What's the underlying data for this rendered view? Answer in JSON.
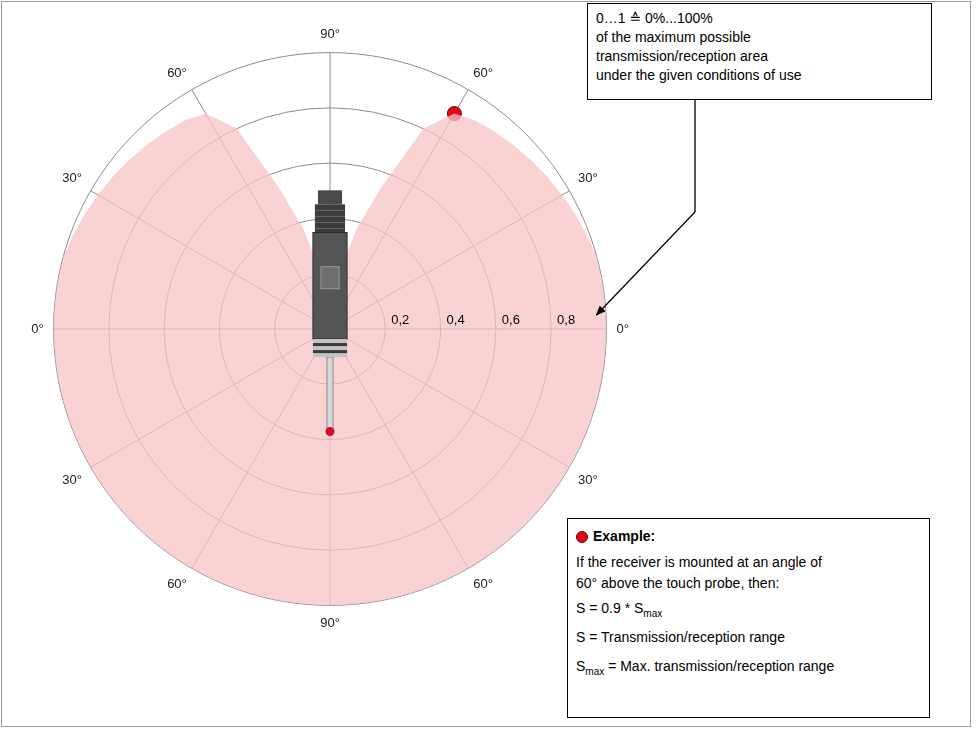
{
  "chart_data": {
    "type": "radar",
    "categories": [
      "90°",
      null,
      null,
      null,
      null,
      null,
      "60°",
      null,
      null,
      null,
      null,
      null,
      "30°",
      null,
      null,
      null,
      null,
      null,
      "0°",
      null,
      null,
      null,
      null,
      null,
      "30°",
      null,
      null,
      null,
      null,
      null,
      "60°",
      null,
      null,
      null,
      null,
      null,
      "90°",
      null,
      null,
      null,
      null,
      null,
      "60°",
      null,
      null,
      null,
      null,
      null,
      "30°",
      null,
      null,
      null,
      null,
      null,
      "0°",
      null,
      null,
      null,
      null,
      null,
      "30°",
      null,
      null,
      null,
      null,
      null,
      "60°",
      null,
      null,
      null,
      null,
      null
    ],
    "series": [
      {
        "color": "#f7c4c4",
        "values": [
          0,
          0.1,
          0.22,
          0.38,
          0.55,
          0.8,
          0.9,
          0.92,
          0.93,
          0.94,
          0.95,
          0.96,
          0.97,
          0.98,
          0.99,
          1,
          1,
          1,
          1,
          1,
          1,
          1,
          1,
          1,
          1,
          1,
          1,
          1,
          1,
          1,
          1,
          1,
          1,
          1,
          1,
          1,
          1,
          1,
          1,
          1,
          1,
          1,
          1,
          1,
          1,
          1,
          1,
          1,
          1,
          1,
          1,
          1,
          1,
          1,
          1,
          1,
          1,
          1,
          0.99,
          0.98,
          0.97,
          0.96,
          0.95,
          0.94,
          0.93,
          0.92,
          0.9,
          0.8,
          0.55,
          0.38,
          0.22,
          0.1
        ]
      },
      {
        "color": "#e30613",
        "marker": "circle",
        "values": [
          null,
          null,
          null,
          null,
          null,
          null,
          0.9,
          null,
          null,
          null,
          null,
          null,
          null,
          null,
          null,
          null,
          null,
          null,
          null,
          null,
          null,
          null,
          null,
          null,
          null,
          null,
          null,
          null,
          null,
          null,
          null,
          null,
          null,
          null,
          null,
          null,
          null,
          null,
          null,
          null,
          null,
          null,
          null,
          null,
          null,
          null,
          null,
          null,
          null,
          null,
          null,
          null,
          null,
          null,
          null,
          null,
          null,
          null,
          null,
          null,
          null,
          null,
          null,
          null,
          null,
          null,
          null,
          null,
          null,
          null,
          null,
          null
        ]
      }
    ],
    "ylim": [
      0,
      1
    ],
    "yticks": [
      {
        "value": 0.2,
        "label": "0,2"
      },
      {
        "value": 0.4,
        "label": "0,4"
      },
      {
        "value": 0.6,
        "label": "0,6"
      },
      {
        "value": 0.8,
        "label": "0,8"
      }
    ],
    "grid": true,
    "annotations": [
      {
        "lines": [
          [
            {
              "text": "0…1 ≙ 0%...100%"
            }
          ],
          [
            {
              "text": "of the maximum possible"
            }
          ],
          [
            {
              "text": "transmission/reception area"
            }
          ],
          [
            {
              "text": "under the given conditions of use"
            }
          ]
        ]
      },
      {
        "title": "Example:",
        "lines": [
          [
            {
              "text": "If the receiver is mounted at an angle of"
            }
          ],
          [
            {
              "text": "60° above the touch probe, then:"
            }
          ],
          [
            {
              "text": "S = 0.9 * S"
            },
            {
              "sub": "max"
            }
          ],
          [
            {
              "text": "S = Transmission/reception range"
            }
          ],
          [
            {
              "text": "S"
            },
            {
              "sub": "max"
            },
            {
              "text": " = Max. transmission/reception range"
            }
          ]
        ]
      }
    ]
  }
}
